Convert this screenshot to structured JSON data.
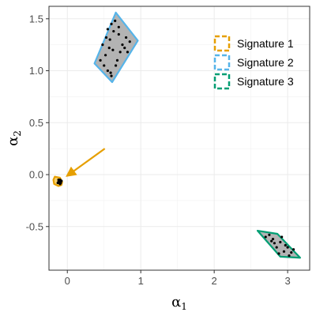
{
  "chart_data": {
    "type": "scatter",
    "title": "",
    "xlabel": "α",
    "xlabel_subscript": "1",
    "ylabel": "α",
    "ylabel_subscript": "2",
    "xlim": [
      -0.25,
      3.3
    ],
    "ylim": [
      -0.92,
      1.62
    ],
    "xticks": [
      0,
      1,
      2,
      3
    ],
    "xtick_labels": [
      "0",
      "1",
      "2",
      "3"
    ],
    "yticks": [
      -0.5,
      0.0,
      0.5,
      1.0,
      1.5
    ],
    "ytick_labels": [
      "-0.5",
      "0.0",
      "0.5",
      "1.0",
      "1.5"
    ],
    "grid": true,
    "legend_position": "top-right",
    "series": [
      {
        "name": "Signature 1",
        "color": "#E69F00",
        "region_fill": "#f7d070",
        "polygon": [
          [
            -0.17,
            -0.02
          ],
          [
            -0.1,
            -0.03
          ],
          [
            -0.07,
            -0.07
          ],
          [
            -0.08,
            -0.1
          ],
          [
            -0.12,
            -0.11
          ],
          [
            -0.18,
            -0.09
          ],
          [
            -0.19,
            -0.05
          ]
        ],
        "points": [
          [
            -0.11,
            -0.06
          ],
          [
            -0.09,
            -0.07
          ],
          [
            -0.12,
            -0.05
          ],
          [
            -0.1,
            -0.09
          ],
          [
            -0.13,
            -0.08
          ],
          [
            -0.08,
            -0.06
          ],
          [
            -0.11,
            -0.08
          ],
          [
            -0.1,
            -0.05
          ],
          [
            -0.12,
            -0.07
          ],
          [
            -0.09,
            -0.08
          ]
        ]
      },
      {
        "name": "Signature 2",
        "color": "#56B4E9",
        "region_fill": "#b3b3b3",
        "polygon": [
          [
            0.66,
            1.56
          ],
          [
            0.96,
            1.29
          ],
          [
            0.61,
            0.89
          ],
          [
            0.37,
            1.07
          ]
        ],
        "points": [
          [
            0.55,
            1.4
          ],
          [
            0.6,
            1.45
          ],
          [
            0.65,
            1.48
          ],
          [
            0.48,
            1.25
          ],
          [
            0.58,
            1.3
          ],
          [
            0.7,
            1.35
          ],
          [
            0.8,
            1.32
          ],
          [
            0.85,
            1.28
          ],
          [
            0.45,
            1.1
          ],
          [
            0.52,
            1.15
          ],
          [
            0.62,
            1.2
          ],
          [
            0.72,
            1.18
          ],
          [
            0.78,
            1.22
          ],
          [
            0.55,
            1.0
          ],
          [
            0.6,
            0.95
          ],
          [
            0.5,
            1.05
          ],
          [
            0.68,
            1.1
          ],
          [
            0.75,
            1.25
          ],
          [
            0.63,
            1.38
          ],
          [
            0.57,
            1.22
          ],
          [
            0.66,
            1.05
          ],
          [
            0.7,
            1.42
          ],
          [
            0.53,
            1.32
          ],
          [
            0.82,
            1.18
          ],
          [
            0.59,
            0.98
          ]
        ]
      },
      {
        "name": "Signature 3",
        "color": "#009E73",
        "region_fill": "#b3b3b3",
        "polygon": [
          [
            2.59,
            -0.54
          ],
          [
            2.86,
            -0.57
          ],
          [
            3.17,
            -0.8
          ],
          [
            2.9,
            -0.79
          ]
        ],
        "points": [
          [
            2.7,
            -0.6
          ],
          [
            2.8,
            -0.62
          ],
          [
            2.9,
            -0.65
          ],
          [
            3.0,
            -0.7
          ],
          [
            3.05,
            -0.75
          ],
          [
            2.85,
            -0.7
          ],
          [
            2.95,
            -0.74
          ],
          [
            2.75,
            -0.58
          ],
          [
            2.92,
            -0.6
          ],
          [
            3.08,
            -0.72
          ],
          [
            2.88,
            -0.76
          ],
          [
            2.97,
            -0.68
          ],
          [
            2.82,
            -0.66
          ],
          [
            3.02,
            -0.78
          ],
          [
            2.78,
            -0.64
          ]
        ]
      }
    ],
    "annotations": [
      {
        "type": "arrow",
        "from": [
          0.51,
          0.25
        ],
        "to": [
          0.0,
          -0.01
        ],
        "color": "#E69F00"
      }
    ]
  }
}
